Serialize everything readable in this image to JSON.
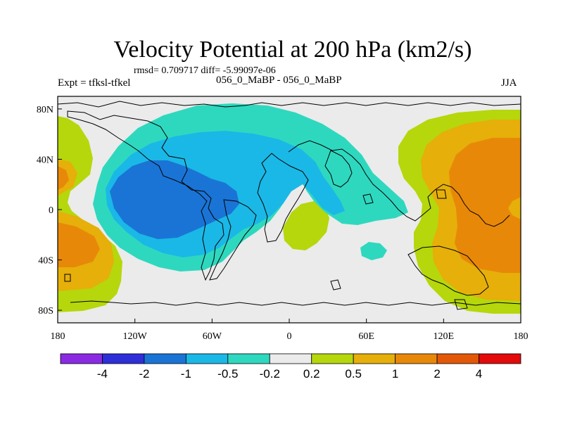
{
  "title": "Velocity Potential at 200 hPa (km2/s)",
  "stats": "rmsd= 0.709717 diff= -5.99097e-06",
  "experiment": "Expt = tfksl-tfkel",
  "subtitle": "056_0_MaBP - 056_0_MaBP",
  "season": "JJA",
  "axes": {
    "x_ticks": [
      {
        "lon": -180,
        "label": "180"
      },
      {
        "lon": -120,
        "label": "120W"
      },
      {
        "lon": -60,
        "label": "60W"
      },
      {
        "lon": 0,
        "label": "0"
      },
      {
        "lon": 60,
        "label": "60E"
      },
      {
        "lon": 120,
        "label": "120E"
      },
      {
        "lon": 180,
        "label": "180"
      }
    ],
    "y_ticks": [
      {
        "lat": 80,
        "label": "80N"
      },
      {
        "lat": 40,
        "label": "40N"
      },
      {
        "lat": 0,
        "label": "0"
      },
      {
        "lat": -40,
        "label": "40S"
      },
      {
        "lat": -80,
        "label": "80S"
      }
    ],
    "lon_range": [
      -180,
      180
    ],
    "lat_range": [
      -90,
      90
    ]
  },
  "colorbar": {
    "colors": [
      "#8a2be2",
      "#2f2fd8",
      "#1a74d6",
      "#1ab8e6",
      "#2ed8bf",
      "#ebebeb",
      "#b5d70c",
      "#e6af0a",
      "#e88808",
      "#e25808",
      "#e20a0a"
    ],
    "labels": [
      "-4",
      "-2",
      "-1",
      "-0.5",
      "-0.2",
      "0.2",
      "0.5",
      "1",
      "2",
      "4"
    ]
  },
  "field_colors": {
    "neutral": "#ebebeb",
    "l1": "#2ed8bf",
    "l2": "#1ab8e6",
    "l3": "#1a74d6",
    "p1": "#b5d70c",
    "p2": "#e6af0a",
    "p3": "#e88808",
    "coast": "#000000"
  }
}
